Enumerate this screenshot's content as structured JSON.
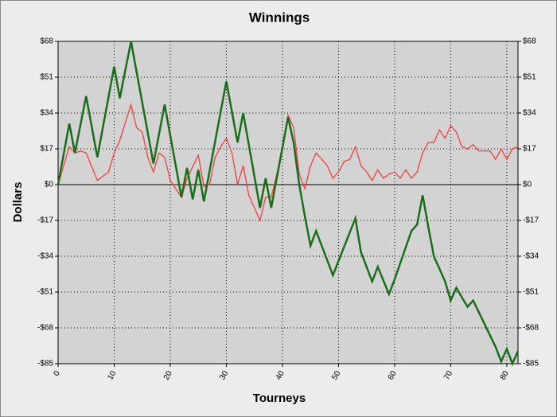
{
  "chart_data": {
    "type": "line",
    "title": "Winnings",
    "x_label": "Tourneys",
    "y_label": "Dollars",
    "xlim": [
      0,
      82
    ],
    "xticks": [
      0,
      10,
      20,
      30,
      40,
      50,
      60,
      70,
      80
    ],
    "ylim": [
      -85,
      68
    ],
    "yticks": [
      {
        "value": -85,
        "label": "-$85"
      },
      {
        "value": -68,
        "label": "-$68"
      },
      {
        "value": -51,
        "label": "-$51"
      },
      {
        "value": -34,
        "label": "-$34"
      },
      {
        "value": -17,
        "label": "-$17"
      },
      {
        "value": 0,
        "label": "$0"
      },
      {
        "value": 17,
        "label": "$17"
      },
      {
        "value": 34,
        "label": "$34"
      },
      {
        "value": 51,
        "label": "$51"
      },
      {
        "value": 68,
        "label": "$68"
      }
    ],
    "grid": true,
    "series": [
      {
        "color": "#f04040",
        "x": [
          0,
          2,
          3,
          4,
          5,
          7,
          9,
          10,
          11,
          13,
          14,
          15,
          16,
          17,
          18,
          19,
          20,
          22,
          23,
          25,
          26,
          27,
          28,
          29,
          30,
          31,
          32,
          33,
          34,
          36,
          37,
          38,
          40,
          41,
          42,
          43,
          44,
          45,
          46,
          47,
          48,
          49,
          50,
          51,
          52,
          53,
          54,
          55,
          56,
          57,
          58,
          59,
          60,
          61,
          62,
          63,
          64,
          65,
          66,
          67,
          68,
          69,
          70,
          71,
          72,
          73,
          74,
          75,
          76,
          77,
          78,
          79,
          80,
          81,
          82
        ],
        "values": [
          0,
          18,
          15,
          16,
          15,
          2,
          6,
          15,
          21,
          38,
          27,
          25,
          13,
          6,
          15,
          13,
          2,
          -6,
          3,
          14,
          -1,
          0,
          13,
          18,
          22,
          15,
          0,
          9,
          -5,
          -17,
          -6,
          -6,
          16,
          33,
          27,
          5,
          -2,
          9,
          15,
          12,
          9,
          3,
          6,
          11,
          12,
          18,
          9,
          6,
          2,
          7,
          3,
          5,
          6,
          3,
          7,
          3,
          6,
          15,
          20,
          20,
          26,
          22,
          28,
          25,
          18,
          17,
          19,
          16,
          16,
          16,
          12,
          17,
          12,
          17,
          18
        ]
      },
      {
        "color": "#1a6e1a",
        "x": [
          0,
          2,
          3,
          5,
          7,
          10,
          11,
          13,
          17,
          19,
          22,
          23,
          24,
          25,
          26,
          30,
          32,
          33,
          36,
          37,
          38,
          41,
          42,
          43,
          44,
          45,
          46,
          49,
          53,
          54,
          56,
          57,
          59,
          60,
          63,
          64,
          65,
          66,
          67,
          69,
          70,
          71,
          73,
          74,
          76,
          78,
          79,
          80,
          81,
          82
        ],
        "values": [
          0,
          29,
          15,
          42,
          13,
          56,
          41,
          68,
          10,
          38,
          -6,
          8,
          -7,
          7,
          -8,
          49,
          20,
          34,
          -11,
          3,
          -11,
          32,
          20,
          0,
          -15,
          -29,
          -22,
          -43,
          -16,
          -32,
          -46,
          -39,
          -52,
          -45,
          -22,
          -19,
          -5,
          -20,
          -34,
          -46,
          -55,
          -49,
          -58,
          -55,
          -66,
          -77,
          -84,
          -78,
          -85,
          -79
        ]
      }
    ]
  }
}
